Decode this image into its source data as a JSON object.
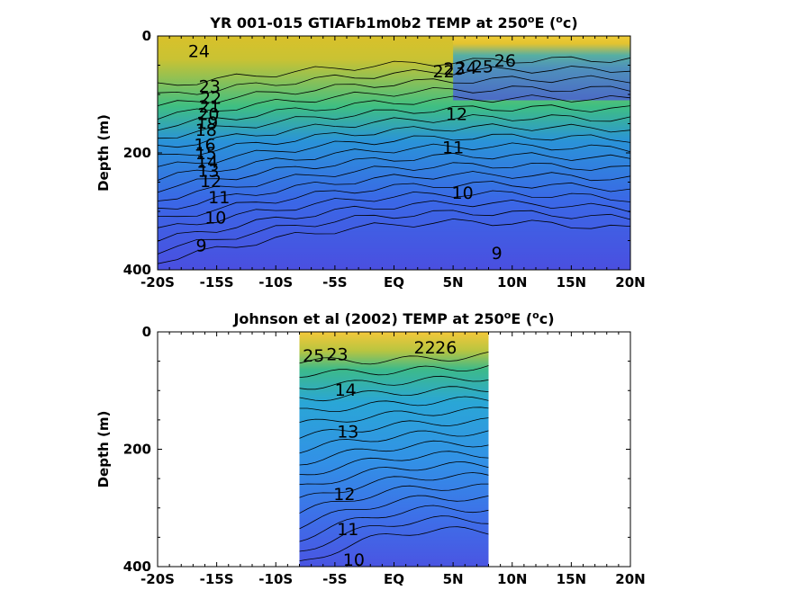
{
  "chart_data": [
    {
      "type": "heatmap",
      "title": "YR 001-015 GTIAFb1m0b2 TEMP at 250",
      "title_deg": "o",
      "title_unit_pre": "E (",
      "title_unit_sup": "o",
      "title_unit_post": "c)",
      "ylabel": "Depth (m)",
      "xlabel": "",
      "x_ticks": [
        "-20S",
        "-15S",
        "-10S",
        "-5S",
        "EQ",
        "5N",
        "10N",
        "15N",
        "20N"
      ],
      "y_ticks": [
        "0",
        "200",
        "400"
      ],
      "xlim": [
        -20,
        20
      ],
      "ylim": [
        0,
        400
      ],
      "y_reversed": true,
      "data_extent_lat": [
        -20,
        20
      ],
      "contour_levels": [
        9,
        10,
        11,
        12,
        13,
        14,
        15,
        16,
        17,
        18,
        19,
        20,
        21,
        22,
        23,
        24,
        25,
        26
      ],
      "contour_labels": [
        {
          "text": "24",
          "lat": -16.5,
          "depth": 28
        },
        {
          "text": "23",
          "lat": -15.6,
          "depth": 88
        },
        {
          "text": "22",
          "lat": -15.5,
          "depth": 108
        },
        {
          "text": "21",
          "lat": -15.6,
          "depth": 122
        },
        {
          "text": "20",
          "lat": -15.7,
          "depth": 135
        },
        {
          "text": "19",
          "lat": -15.8,
          "depth": 150
        },
        {
          "text": "18",
          "lat": -15.9,
          "depth": 162
        },
        {
          "text": "16",
          "lat": -16.0,
          "depth": 188
        },
        {
          "text": "15",
          "lat": -15.9,
          "depth": 202
        },
        {
          "text": "14",
          "lat": -15.8,
          "depth": 217
        },
        {
          "text": "13",
          "lat": -15.7,
          "depth": 232
        },
        {
          "text": "12",
          "lat": -15.5,
          "depth": 250
        },
        {
          "text": "11",
          "lat": -14.8,
          "depth": 278
        },
        {
          "text": "10",
          "lat": -15.1,
          "depth": 312
        },
        {
          "text": "9",
          "lat": -16.3,
          "depth": 360
        },
        {
          "text": "22",
          "lat": 4.2,
          "depth": 62
        },
        {
          "text": "23",
          "lat": 5.1,
          "depth": 58
        },
        {
          "text": "24",
          "lat": 6.1,
          "depth": 56
        },
        {
          "text": "25",
          "lat": 7.5,
          "depth": 54
        },
        {
          "text": "26",
          "lat": 9.4,
          "depth": 44
        },
        {
          "text": "12",
          "lat": 5.3,
          "depth": 135
        },
        {
          "text": "11",
          "lat": 5.0,
          "depth": 192
        },
        {
          "text": "10",
          "lat": 5.8,
          "depth": 270
        },
        {
          "text": "9",
          "lat": 8.7,
          "depth": 373
        }
      ]
    },
    {
      "type": "heatmap",
      "title": "Johnson et al (2002) TEMP at 250",
      "title_deg": "o",
      "title_unit_pre": "E (",
      "title_unit_sup": "o",
      "title_unit_post": "c)",
      "ylabel": "Depth (m)",
      "xlabel": "",
      "x_ticks": [
        "-20S",
        "-15S",
        "-10S",
        "-5S",
        "EQ",
        "5N",
        "10N",
        "15N",
        "20N"
      ],
      "y_ticks": [
        "0",
        "200",
        "400"
      ],
      "xlim": [
        -20,
        20
      ],
      "ylim": [
        0,
        400
      ],
      "y_reversed": true,
      "data_extent_lat": [
        -8,
        8
      ],
      "contour_levels": [
        10,
        11,
        12,
        13,
        14,
        15,
        16,
        17,
        18,
        19,
        20,
        21,
        22,
        23,
        24,
        25,
        26
      ],
      "contour_labels": [
        {
          "text": "25",
          "lat": -6.8,
          "depth": 42
        },
        {
          "text": "23",
          "lat": -4.8,
          "depth": 40
        },
        {
          "text": "14",
          "lat": -4.1,
          "depth": 100
        },
        {
          "text": "13",
          "lat": -3.9,
          "depth": 172
        },
        {
          "text": "12",
          "lat": -4.2,
          "depth": 278
        },
        {
          "text": "11",
          "lat": -3.9,
          "depth": 338
        },
        {
          "text": "10",
          "lat": -3.4,
          "depth": 390
        },
        {
          "text": "22",
          "lat": 2.6,
          "depth": 28
        },
        {
          "text": "26",
          "lat": 4.4,
          "depth": 28
        }
      ]
    }
  ]
}
